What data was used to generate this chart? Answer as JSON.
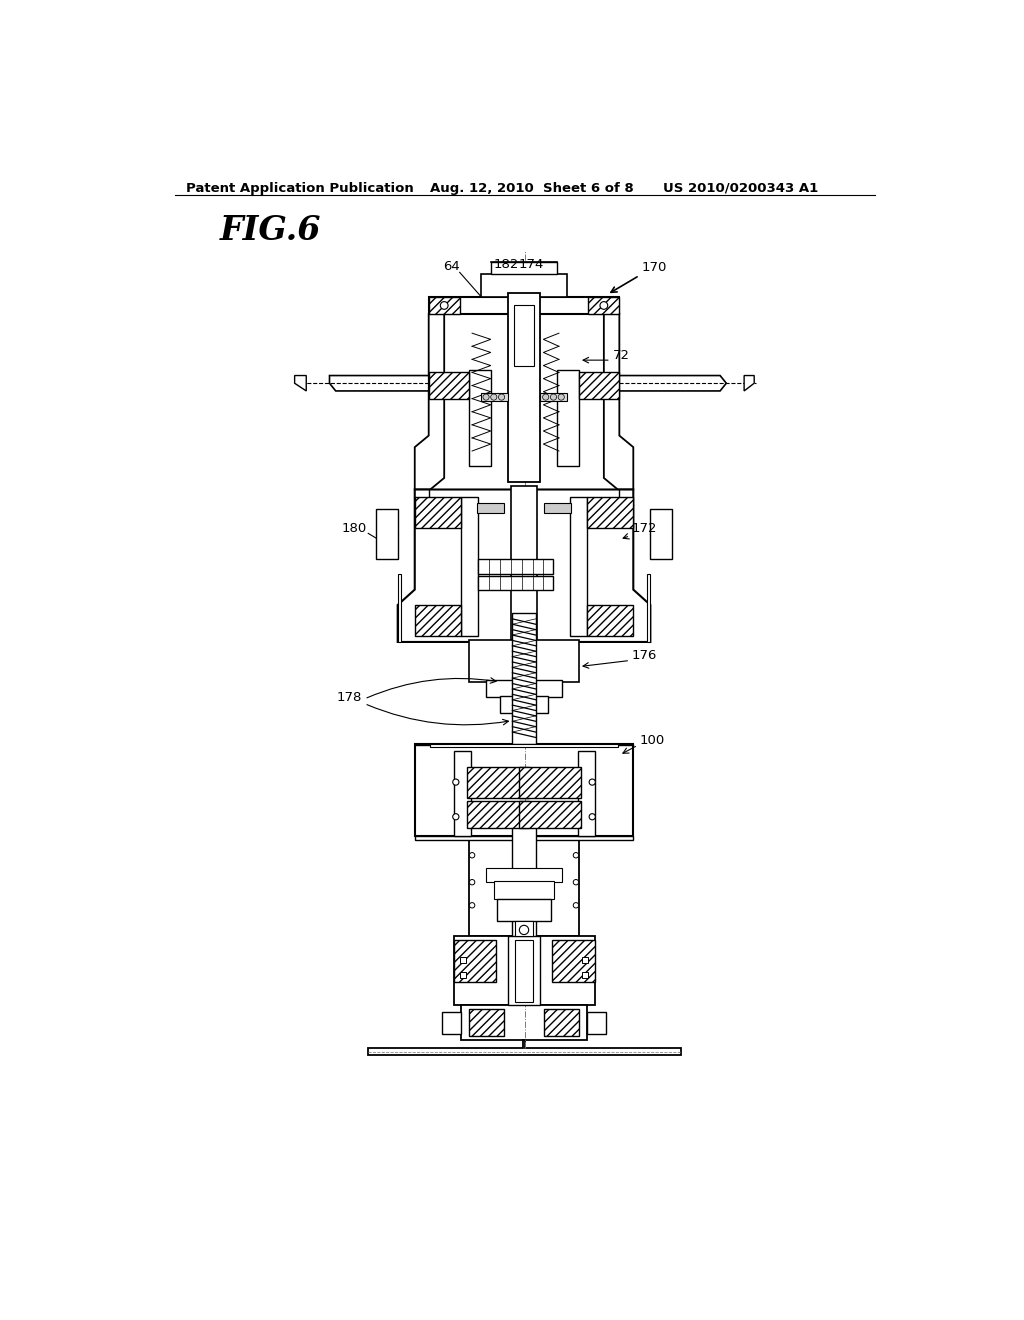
{
  "background_color": "#ffffff",
  "header_left": "Patent Application Publication",
  "header_center": "Aug. 12, 2010  Sheet 6 of 8",
  "header_right": "US 2010/0200343 A1",
  "fig_label": "FIG.6",
  "text_color": "#000000",
  "gray_color": "#888888",
  "light_gray": "#cccccc"
}
